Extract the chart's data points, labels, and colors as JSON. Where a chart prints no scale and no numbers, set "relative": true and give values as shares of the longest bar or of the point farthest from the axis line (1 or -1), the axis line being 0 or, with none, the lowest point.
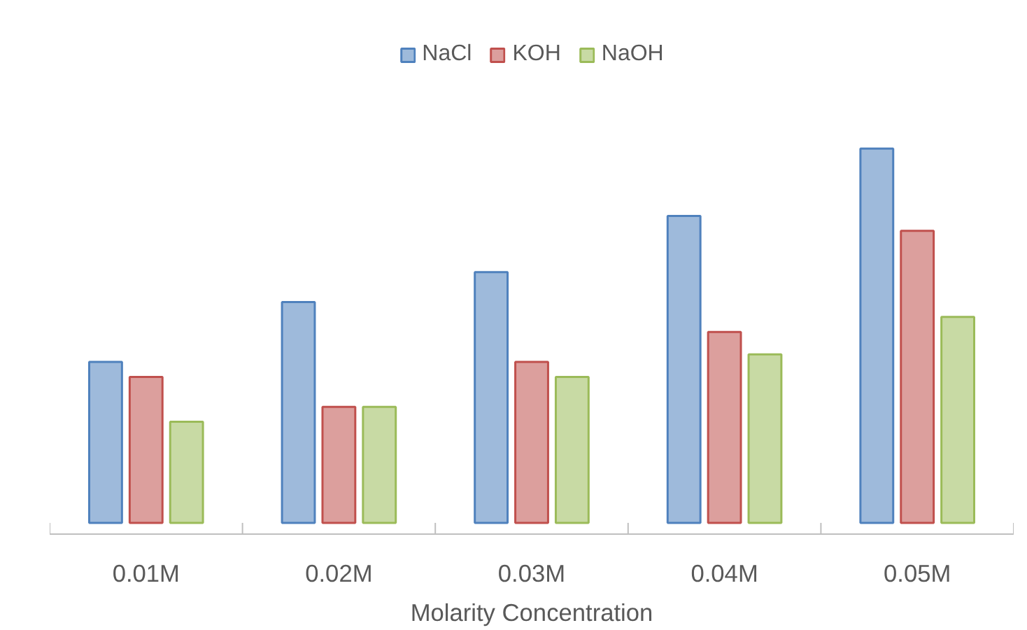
{
  "chart_data": {
    "type": "bar",
    "relative": true,
    "xlabel": "Molarity Concentration",
    "categories": [
      "0.01M",
      "0.02M",
      "0.03M",
      "0.04M",
      "0.05M"
    ],
    "series": [
      {
        "name": "NaCl",
        "color": "#4f81bd",
        "values": [
          0.43,
          0.59,
          0.67,
          0.82,
          1
        ]
      },
      {
        "name": "KOH",
        "color": "#c0504d",
        "values": [
          0.39,
          0.31,
          0.43,
          0.51,
          0.78
        ]
      },
      {
        "name": "NaOH",
        "color": "#9bbb59",
        "values": [
          0.27,
          0.31,
          0.39,
          0.45,
          0.55
        ]
      }
    ],
    "legend": "top",
    "grid": false
  }
}
